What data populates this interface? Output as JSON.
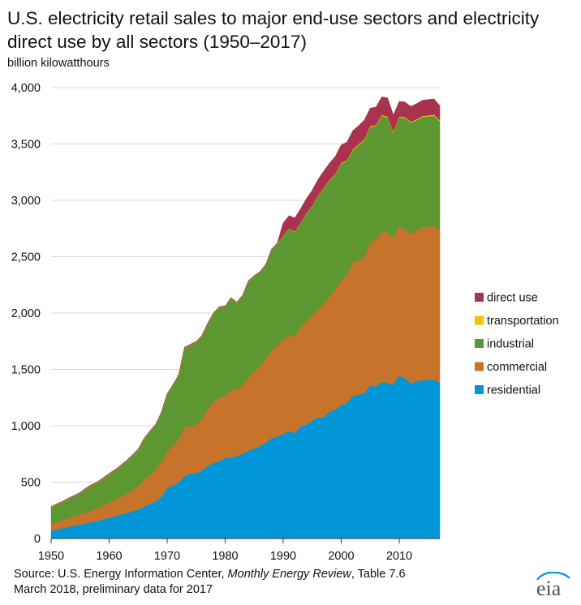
{
  "title": "U.S. electricity retail sales to major end-use sectors and electricity direct use by all sectors (1950–2017)",
  "source": {
    "prefix": "Source: U.S. Energy Information Center, ",
    "publication": "Monthly Energy Review",
    "suffix": ", Table 7.6",
    "line2": "March 2018, preliminary data for 2017"
  },
  "logo": {
    "text": "eia",
    "icon": "eia-logo"
  },
  "chart_data": {
    "type": "area",
    "stacked": true,
    "title": "U.S. electricity retail sales to major end-use sectors and electricity direct use by all sectors (1950–2017)",
    "ylabel": "billion kilowatthours",
    "xlabel": "",
    "xlim": [
      1950,
      2017
    ],
    "ylim": [
      0,
      4000
    ],
    "yticks": [
      0,
      500,
      1000,
      1500,
      2000,
      2500,
      3000,
      3500,
      4000
    ],
    "ytick_labels": [
      "0",
      "500",
      "1,000",
      "1,500",
      "2,000",
      "2,500",
      "3,000",
      "3,500",
      "4,000"
    ],
    "xticks": [
      1950,
      1960,
      1970,
      1980,
      1990,
      2000,
      2010
    ],
    "xtick_labels": [
      "1950",
      "1960",
      "1970",
      "1980",
      "1990",
      "2000",
      "2010"
    ],
    "grid": "horizontal",
    "legend": "right",
    "x": [
      1950,
      1951,
      1952,
      1953,
      1954,
      1955,
      1956,
      1957,
      1958,
      1959,
      1960,
      1961,
      1962,
      1963,
      1964,
      1965,
      1966,
      1967,
      1968,
      1969,
      1970,
      1971,
      1972,
      1973,
      1974,
      1975,
      1976,
      1977,
      1978,
      1979,
      1980,
      1981,
      1982,
      1983,
      1984,
      1985,
      1986,
      1987,
      1988,
      1989,
      1990,
      1991,
      1992,
      1993,
      1994,
      1995,
      1996,
      1997,
      1998,
      1999,
      2000,
      2001,
      2002,
      2003,
      2004,
      2005,
      2006,
      2007,
      2008,
      2009,
      2010,
      2011,
      2012,
      2013,
      2014,
      2015,
      2016,
      2017
    ],
    "series": [
      {
        "name": "residential",
        "color": "#0096d7",
        "values": [
          70,
          80,
          92,
          103,
          115,
          125,
          135,
          145,
          158,
          170,
          185,
          198,
          212,
          226,
          242,
          257,
          282,
          305,
          330,
          368,
          448,
          470,
          500,
          550,
          580,
          575,
          605,
          645,
          670,
          685,
          715,
          720,
          730,
          750,
          780,
          795,
          820,
          850,
          890,
          905,
          925,
          955,
          935,
          995,
          1010,
          1045,
          1075,
          1075,
          1125,
          1145,
          1185,
          1200,
          1265,
          1275,
          1290,
          1355,
          1350,
          1390,
          1380,
          1365,
          1445,
          1420,
          1375,
          1395,
          1405,
          1405,
          1410,
          1380
        ]
      },
      {
        "name": "commercial",
        "color": "#c8732a",
        "values": [
          60,
          66,
          72,
          78,
          82,
          88,
          96,
          104,
          113,
          123,
          135,
          145,
          158,
          172,
          188,
          205,
          238,
          255,
          280,
          305,
          320,
          352,
          378,
          440,
          415,
          435,
          455,
          500,
          540,
          565,
          550,
          600,
          590,
          610,
          650,
          680,
          710,
          740,
          780,
          800,
          840,
          855,
          850,
          880,
          910,
          930,
          960,
          1000,
          1020,
          1065,
          1100,
          1140,
          1190,
          1195,
          1205,
          1275,
          1300,
          1330,
          1335,
          1305,
          1330,
          1320,
          1325,
          1340,
          1355,
          1360,
          1360,
          1350
        ]
      },
      {
        "name": "industrial",
        "color": "#5d9732",
        "values": [
          146,
          155,
          160,
          170,
          178,
          188,
          210,
          222,
          225,
          240,
          250,
          260,
          273,
          287,
          305,
          325,
          360,
          385,
          395,
          440,
          510,
          535,
          570,
          700,
          720,
          730,
          735,
          760,
          785,
          800,
          790,
          810,
          770,
          790,
          850,
          850,
          830,
          835,
          890,
          910,
          920,
          935,
          935,
          920,
          960,
          970,
          1000,
          1030,
          1030,
          1020,
          1040,
          1010,
          990,
          1020,
          1040,
          1020,
          1010,
          1030,
          1020,
          930,
          960,
          990,
          990,
          975,
          980,
          980,
          980,
          970
        ]
      },
      {
        "name": "transportation",
        "color": "#f2c400",
        "values": [
          3,
          3,
          3,
          3,
          3,
          3,
          3,
          3,
          3,
          3,
          3,
          3,
          3,
          3,
          3,
          3,
          3,
          3,
          3,
          3,
          3,
          3,
          3,
          3,
          3,
          3,
          3,
          3,
          3,
          3,
          3,
          3,
          3,
          3,
          3,
          3,
          3,
          3,
          3,
          3,
          4,
          4,
          4,
          5,
          5,
          5,
          6,
          6,
          6,
          6,
          7,
          7,
          8,
          8,
          8,
          8,
          8,
          8,
          8,
          8,
          8,
          8,
          8,
          8,
          8,
          9,
          10,
          10
        ]
      },
      {
        "name": "direct use",
        "color": "#a9334f",
        "values": [
          5,
          5,
          5,
          5,
          5,
          5,
          5,
          5,
          5,
          5,
          5,
          5,
          5,
          5,
          5,
          5,
          5,
          5,
          5,
          5,
          5,
          5,
          5,
          5,
          5,
          5,
          5,
          5,
          5,
          5,
          5,
          5,
          5,
          5,
          5,
          5,
          5,
          5,
          5,
          5,
          110,
          115,
          120,
          125,
          130,
          140,
          145,
          150,
          150,
          155,
          160,
          160,
          165,
          165,
          170,
          160,
          160,
          160,
          165,
          150,
          135,
          135,
          135,
          140,
          140,
          140,
          140,
          130
        ]
      }
    ]
  }
}
